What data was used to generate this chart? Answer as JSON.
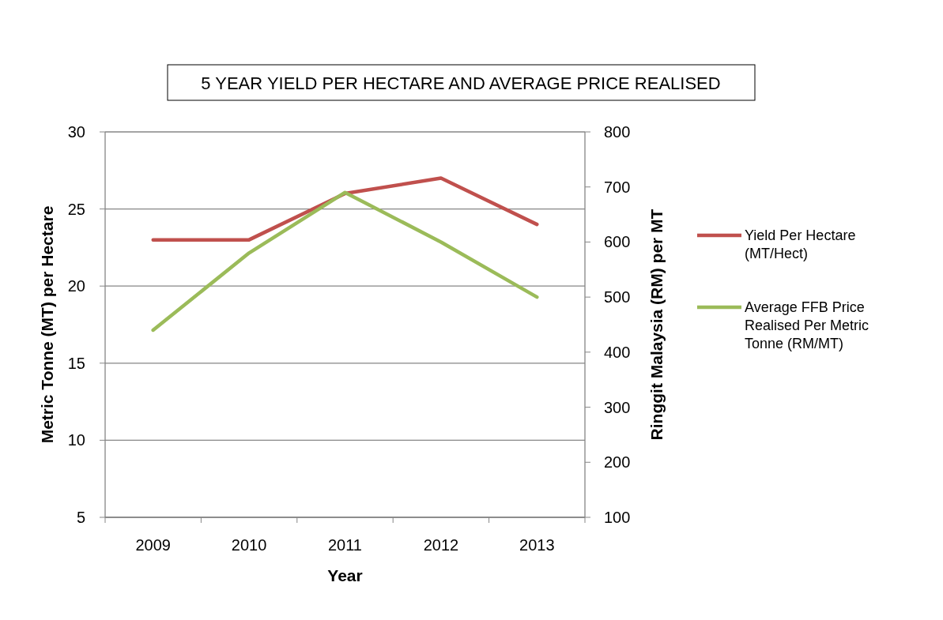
{
  "chart_data": {
    "type": "line",
    "subtitle": "5 YEAR YIELD PER HECTARE AND AVERAGE PRICE REALISED",
    "xlabel": "Year",
    "ylabel": "Metric Tonne (MT) per Hectare",
    "y2label": "Ringgit Malaysia (RM) per MT",
    "categories": [
      "2009",
      "2010",
      "2011",
      "2012",
      "2013"
    ],
    "series": [
      {
        "name": "Yield Per Hectare (MT/Hect)",
        "color": "#c0504d",
        "values": [
          23,
          23,
          26,
          27,
          24
        ]
      },
      {
        "name": "Average FFB Price Realised Per Metric Tonne (RM/MT)",
        "color": "#9bbb59",
        "values": [
          440,
          580,
          690,
          600,
          500
        ],
        "axis": "y2"
      }
    ],
    "ylim": [
      5,
      30
    ],
    "yticks": [
      5,
      10,
      15,
      20,
      25,
      30
    ],
    "y2lim": [
      100,
      800
    ],
    "y2ticks": [
      100,
      200,
      300,
      400,
      500,
      600,
      700,
      800
    ],
    "grid": "y",
    "legend": "right",
    "marker": "none",
    "line_style": "solid"
  }
}
